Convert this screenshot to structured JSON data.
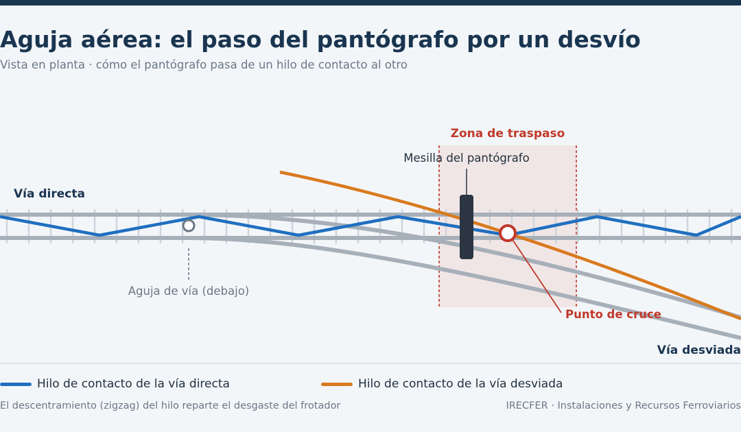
{
  "header": {
    "title": "Aguja aérea: el paso del pantógrafo por un desvío",
    "subtitle": "Vista en planta · cómo el pantógrafo pasa de un hilo de contacto al otro"
  },
  "diagram": {
    "labels": {
      "zona_traspaso": "Zona de traspaso",
      "mesilla": "Mesilla del pantógrafo",
      "via_directa": "Vía directa",
      "aguja_via": "Aguja de vía (debajo)",
      "punto_cruce": "Punto de cruce",
      "via_desviada": "Vía desviada"
    }
  },
  "legend": {
    "items": [
      {
        "label": "Hilo de contacto de la vía directa",
        "color": "#1f6fc0"
      },
      {
        "label": "Hilo de contacto de la vía desviada",
        "color": "#d97a1e"
      }
    ]
  },
  "footer": {
    "note": "El descentramiento (zigzag) del hilo reparte el desgaste del frotador",
    "credit": "IRECFER · Instalaciones y Recursos Ferroviarios"
  },
  "colors": {
    "title": "#1a3550",
    "rail": "#a7b0b9",
    "tie": "#cdd4db",
    "direct_wire": "#1f6fc0",
    "diverging_wire": "#d97a1e",
    "accent_red": "#c0392b",
    "zone_fill": "#f1e6e6",
    "pantograph": "#2b3642"
  }
}
